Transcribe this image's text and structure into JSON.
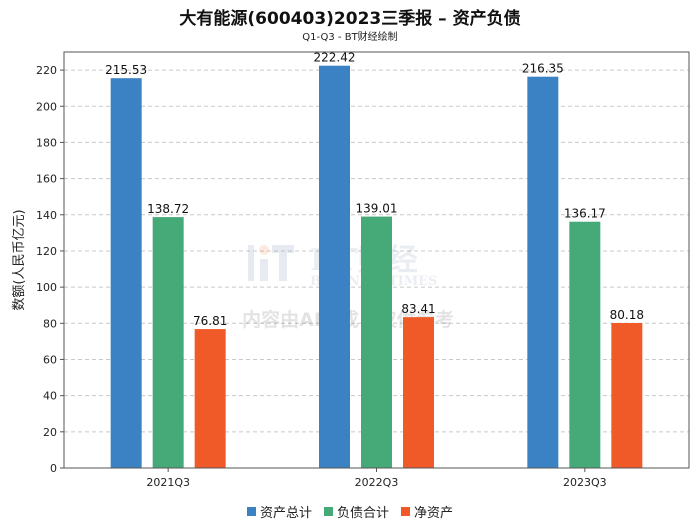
{
  "chart_data": {
    "type": "bar",
    "title": "大有能源(600403)2023三季报 – 资产负债",
    "subtitle": "Q1-Q3 - BT财经绘制",
    "ylabel": "数额(人民币亿元)",
    "xlabel": "",
    "categories": [
      "2021Q3",
      "2022Q3",
      "2023Q3"
    ],
    "ylim": [
      0,
      230
    ],
    "yticks": [
      0,
      20,
      40,
      60,
      80,
      100,
      120,
      140,
      160,
      180,
      200,
      220
    ],
    "grid": true,
    "legend_position": "bottom",
    "series": [
      {
        "name": "资产总计",
        "color": "#3a82c4",
        "values": [
          215.53,
          222.42,
          216.35
        ],
        "labels": [
          "215.53",
          "222.42",
          "216.35"
        ]
      },
      {
        "name": "负债合计",
        "color": "#46aa78",
        "values": [
          138.72,
          139.01,
          136.17
        ],
        "labels": [
          "138.72",
          "139.01",
          "136.17"
        ]
      },
      {
        "name": "净资产",
        "color": "#f05a28",
        "values": [
          76.81,
          83.41,
          80.18
        ],
        "labels": [
          "76.81",
          "83.41",
          "80.18"
        ]
      }
    ]
  },
  "watermark": {
    "brand": "BT财经",
    "brand_en": "BUSINESSTIMES",
    "notice": "内容由AI生成，仅供参考"
  }
}
